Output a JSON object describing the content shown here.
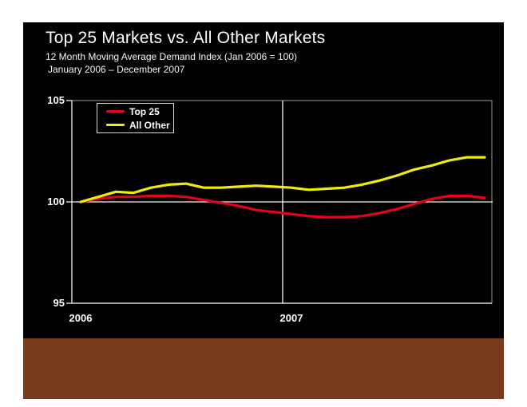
{
  "slide": {
    "title": "Top 25 Markets vs. All Other Markets",
    "subtitle1": "12 Month Moving Average Demand Index (Jan 2006 = 100)",
    "subtitle2": "January 2006 – December 2007",
    "colors": {
      "page_background": "#ffffff",
      "slide_background": "#000000",
      "footer_bar": "#7a3a1c",
      "title_text": "#ffffff",
      "axis_border": "#9e9e9e",
      "gridline": "#f2f2f2"
    }
  },
  "chart_data": {
    "type": "line",
    "title": "Top 25 Markets vs. All Other Markets",
    "subtitle": "12 Month Moving Average Demand Index (Jan 2006 = 100)",
    "period": "January 2006 – December 2007",
    "xlabel": "",
    "ylabel": "",
    "ylim": [
      95,
      105
    ],
    "ytick_labels": [
      "105",
      "100",
      "95"
    ],
    "xtick_labels": [
      "2006",
      "2007"
    ],
    "grid": "horizontal gridline at 100, vertical divider at 2006/2007 boundary",
    "legend_position": "top-left",
    "x": [
      "Jan-06",
      "Feb-06",
      "Mar-06",
      "Apr-06",
      "May-06",
      "Jun-06",
      "Jul-06",
      "Aug-06",
      "Sep-06",
      "Oct-06",
      "Nov-06",
      "Dec-06",
      "Jan-07",
      "Feb-07",
      "Mar-07",
      "Apr-07",
      "May-07",
      "Jun-07",
      "Jul-07",
      "Aug-07",
      "Sep-07",
      "Oct-07",
      "Nov-07",
      "Dec-07"
    ],
    "series": [
      {
        "name": "Top 25",
        "color": "#e6001e",
        "values": [
          100.0,
          100.15,
          100.25,
          100.25,
          100.3,
          100.3,
          100.25,
          100.1,
          99.95,
          99.8,
          99.6,
          99.5,
          99.4,
          99.3,
          99.25,
          99.25,
          99.3,
          99.45,
          99.65,
          99.9,
          100.15,
          100.3,
          100.3,
          100.2
        ]
      },
      {
        "name": "All Other",
        "color": "#f0ee00",
        "values": [
          100.0,
          100.25,
          100.5,
          100.45,
          100.7,
          100.85,
          100.9,
          100.7,
          100.7,
          100.75,
          100.8,
          100.75,
          100.7,
          100.6,
          100.65,
          100.7,
          100.85,
          101.05,
          101.3,
          101.6,
          101.8,
          102.05,
          102.2,
          102.2
        ]
      }
    ]
  }
}
